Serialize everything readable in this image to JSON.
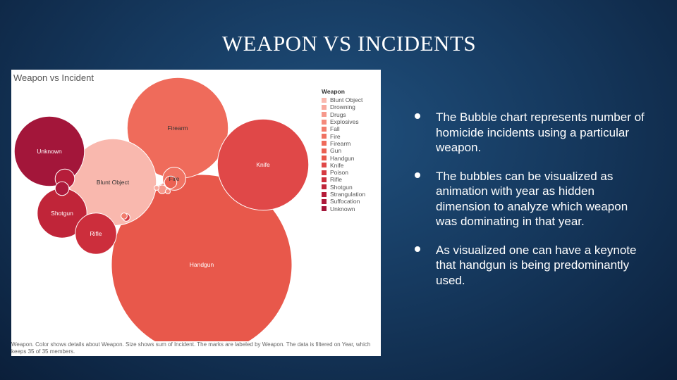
{
  "slide": {
    "title": "WEAPON VS INCIDENTS",
    "bullets": [
      "The Bubble chart represents number of homicide incidents using a particular weapon.",
      "The bubbles can be visualized as animation with year as hidden dimension to analyze which weapon was dominating in that year.",
      "As visualized one can have a keynote that handgun is being predominantly used."
    ]
  },
  "chart_data": {
    "type": "bubble",
    "title": "Weapon vs Incident",
    "legend_title": "Weapon",
    "legend_placement": "top-right",
    "size_measure": "sum of Incident",
    "caption": "Weapon.  Color shows details about Weapon.  Size shows sum of Incident.  The marks are labeled by Weapon. The data is filtered on Year, which keeps 35 of 35 members.",
    "series": [
      {
        "name": "Blunt Object",
        "value": 20000,
        "color": "#f9b8ae",
        "labeled": true
      },
      {
        "name": "Drowning",
        "value": 30,
        "color": "#f8a99e",
        "labeled": false
      },
      {
        "name": "Drugs",
        "value": 200,
        "color": "#f6998c",
        "labeled": false
      },
      {
        "name": "Explosives",
        "value": 60,
        "color": "#f48a7c",
        "labeled": false
      },
      {
        "name": "Fall",
        "value": 100,
        "color": "#f27c6c",
        "labeled": false
      },
      {
        "name": "Fire",
        "value": 1400,
        "color": "#f07262",
        "labeled": true
      },
      {
        "name": "Firearm",
        "value": 27000,
        "color": "#ef6b5b",
        "labeled": true
      },
      {
        "name": "Gun",
        "value": 400,
        "color": "#eb6152",
        "labeled": false
      },
      {
        "name": "Handgun",
        "value": 86000,
        "color": "#e8584b",
        "labeled": true
      },
      {
        "name": "Knife",
        "value": 22000,
        "color": "#e04848",
        "labeled": true
      },
      {
        "name": "Poison",
        "value": 150,
        "color": "#d63a42",
        "labeled": false
      },
      {
        "name": "Rifle",
        "value": 4500,
        "color": "#cc2e3c",
        "labeled": true
      },
      {
        "name": "Shotgun",
        "value": 6500,
        "color": "#c02539",
        "labeled": true
      },
      {
        "name": "Strangulation",
        "value": 1000,
        "color": "#b61d3a",
        "labeled": false
      },
      {
        "name": "Suffocation",
        "value": 500,
        "color": "#ad1a3c",
        "labeled": false
      },
      {
        "name": "Unknown",
        "value": 13000,
        "color": "#a3163a",
        "labeled": true
      }
    ]
  }
}
